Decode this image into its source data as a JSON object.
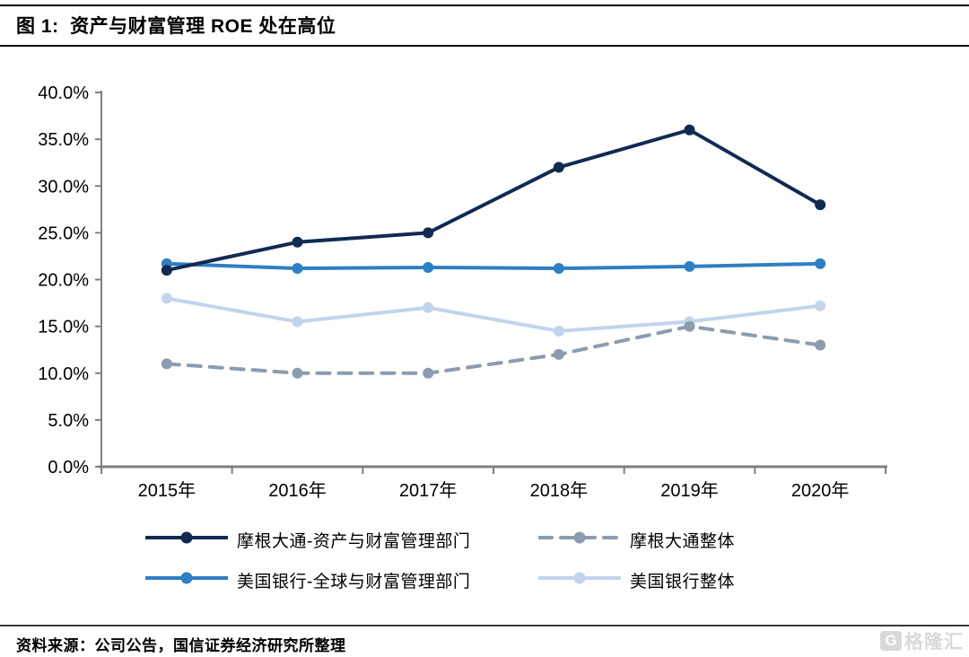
{
  "title": "图 1:  资产与财富管理 ROE 处在高位",
  "source_note": "资料来源：公司公告，国信证券经济研究所整理",
  "watermark": "格隆汇",
  "watermark_icon_letter": "G",
  "colors": {
    "axis": "#808080",
    "tick_label": "#000000",
    "title_rule": "#000000",
    "watermark": "#d9d9d9"
  },
  "chart_data": {
    "type": "line",
    "categories": [
      "2015年",
      "2016年",
      "2017年",
      "2018年",
      "2019年",
      "2020年"
    ],
    "series": [
      {
        "name": "摩根大通-资产与财富管理部门",
        "values": [
          21,
          24,
          25,
          32,
          36,
          28
        ],
        "color": "#122A52",
        "style": "solid"
      },
      {
        "name": "摩根大通整体",
        "values": [
          11,
          10,
          10,
          12,
          15,
          13
        ],
        "color": "#8C9CAE",
        "style": "dashed"
      },
      {
        "name": "美国银行-全球与财富管理部门",
        "values": [
          21.7,
          21.2,
          21.3,
          21.2,
          21.4,
          21.7
        ],
        "color": "#2E7FC3",
        "style": "solid"
      },
      {
        "name": "美国银行整体",
        "values": [
          18,
          15.5,
          17,
          14.5,
          15.5,
          17.2
        ],
        "color": "#C2D4EC",
        "style": "solid"
      }
    ],
    "ylim": [
      0,
      40
    ],
    "ytick_step": 5,
    "yticks": [
      "0.0%",
      "5.0%",
      "10.0%",
      "15.0%",
      "20.0%",
      "25.0%",
      "30.0%",
      "35.0%",
      "40.0%"
    ],
    "xlabel": "",
    "ylabel": "",
    "grid": false,
    "legend_position": "bottom",
    "draw_order": [
      3,
      1,
      2,
      0
    ]
  }
}
